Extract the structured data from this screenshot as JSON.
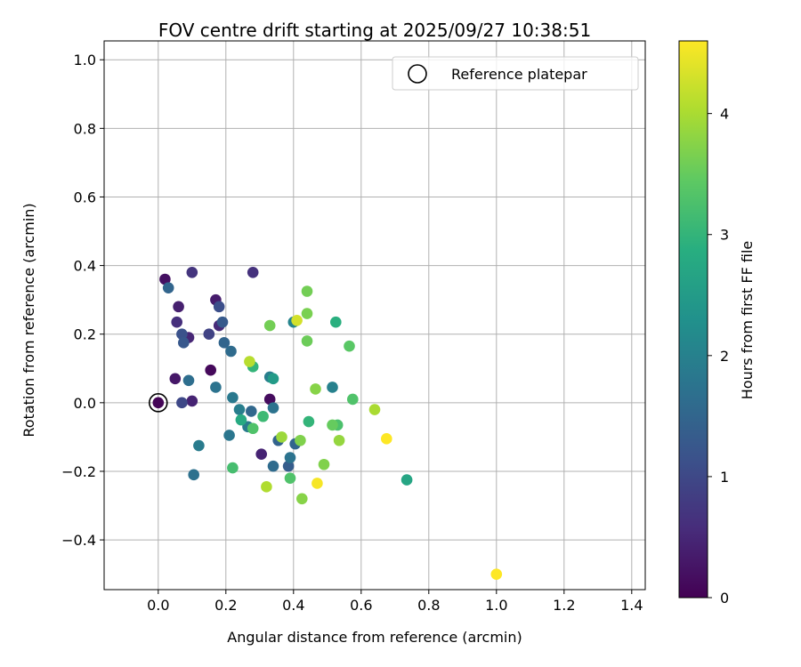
{
  "chart_data": {
    "type": "scatter",
    "title": "FOV centre drift starting at 2025/09/27 10:38:51",
    "xlabel": "Angular distance from reference (arcmin)",
    "ylabel": "Rotation from reference (arcmin)",
    "xlim": [
      -0.16,
      1.44
    ],
    "ylim": [
      -0.545,
      1.055
    ],
    "xticks": [
      0.0,
      0.2,
      0.4,
      0.6,
      0.8,
      1.0,
      1.2,
      1.4
    ],
    "xtick_labels": [
      "0.0",
      "0.2",
      "0.4",
      "0.6",
      "0.8",
      "1.0",
      "1.2",
      "1.4"
    ],
    "yticks": [
      -0.4,
      -0.2,
      0.0,
      0.2,
      0.4,
      0.6,
      0.8,
      1.0
    ],
    "ytick_labels": [
      "−0.4",
      "−0.2",
      "0.0",
      "0.2",
      "0.4",
      "0.6",
      "0.8",
      "1.0"
    ],
    "grid": true,
    "legend": {
      "label": "Reference platepar",
      "placement": "top-right"
    },
    "reference_point": {
      "x": 0.0,
      "y": 0.0
    },
    "colorbar": {
      "label": "Hours from first FF file",
      "min": 0,
      "max": 4.6,
      "ticks": [
        0,
        1,
        2,
        3,
        4
      ],
      "tick_labels": [
        "0",
        "1",
        "2",
        "3",
        "4"
      ],
      "colormap": "viridis"
    },
    "points": [
      {
        "x": 0.0,
        "y": 0.0,
        "h": 0.05
      },
      {
        "x": 0.02,
        "y": 0.36,
        "h": 0.2
      },
      {
        "x": 0.05,
        "y": 0.07,
        "h": 0.3
      },
      {
        "x": 0.06,
        "y": 0.28,
        "h": 0.4
      },
      {
        "x": 0.055,
        "y": 0.235,
        "h": 0.6
      },
      {
        "x": 0.09,
        "y": 0.19,
        "h": 0.5
      },
      {
        "x": 0.1,
        "y": 0.005,
        "h": 0.45
      },
      {
        "x": 0.1,
        "y": 0.38,
        "h": 0.7
      },
      {
        "x": 0.155,
        "y": 0.095,
        "h": 0.1
      },
      {
        "x": 0.17,
        "y": 0.3,
        "h": 0.35
      },
      {
        "x": 0.18,
        "y": 0.225,
        "h": 0.55
      },
      {
        "x": 0.28,
        "y": 0.38,
        "h": 0.65
      },
      {
        "x": 0.33,
        "y": 0.01,
        "h": 0.15
      },
      {
        "x": 0.305,
        "y": -0.15,
        "h": 0.45
      },
      {
        "x": 0.15,
        "y": 0.2,
        "h": 0.9
      },
      {
        "x": 0.07,
        "y": 0.0,
        "h": 1.0
      },
      {
        "x": 0.07,
        "y": 0.2,
        "h": 1.15
      },
      {
        "x": 0.075,
        "y": 0.175,
        "h": 1.25
      },
      {
        "x": 0.03,
        "y": 0.335,
        "h": 1.5
      },
      {
        "x": 0.18,
        "y": 0.28,
        "h": 1.1
      },
      {
        "x": 0.19,
        "y": 0.235,
        "h": 1.3
      },
      {
        "x": 0.195,
        "y": 0.175,
        "h": 1.5
      },
      {
        "x": 0.215,
        "y": 0.15,
        "h": 1.6
      },
      {
        "x": 0.09,
        "y": 0.065,
        "h": 1.65
      },
      {
        "x": 0.17,
        "y": 0.045,
        "h": 1.75
      },
      {
        "x": 0.22,
        "y": 0.015,
        "h": 1.85
      },
      {
        "x": 0.24,
        "y": -0.02,
        "h": 1.95
      },
      {
        "x": 0.275,
        "y": -0.025,
        "h": 1.55
      },
      {
        "x": 0.265,
        "y": -0.07,
        "h": 1.9
      },
      {
        "x": 0.21,
        "y": -0.095,
        "h": 1.8
      },
      {
        "x": 0.12,
        "y": -0.125,
        "h": 1.9
      },
      {
        "x": 0.105,
        "y": -0.21,
        "h": 1.7
      },
      {
        "x": 0.33,
        "y": 0.075,
        "h": 1.95
      },
      {
        "x": 0.34,
        "y": -0.015,
        "h": 1.75
      },
      {
        "x": 0.355,
        "y": -0.11,
        "h": 1.45
      },
      {
        "x": 0.34,
        "y": -0.185,
        "h": 1.6
      },
      {
        "x": 0.385,
        "y": -0.185,
        "h": 1.35
      },
      {
        "x": 0.39,
        "y": -0.16,
        "h": 1.75
      },
      {
        "x": 0.405,
        "y": -0.12,
        "h": 1.5
      },
      {
        "x": 0.4,
        "y": 0.235,
        "h": 2.05
      },
      {
        "x": 0.515,
        "y": 0.045,
        "h": 2.0
      },
      {
        "x": 0.34,
        "y": 0.07,
        "h": 2.5
      },
      {
        "x": 0.28,
        "y": 0.105,
        "h": 3.0
      },
      {
        "x": 0.245,
        "y": -0.05,
        "h": 2.8
      },
      {
        "x": 0.31,
        "y": -0.04,
        "h": 3.1
      },
      {
        "x": 0.28,
        "y": -0.075,
        "h": 3.3
      },
      {
        "x": 0.22,
        "y": -0.19,
        "h": 3.2
      },
      {
        "x": 0.39,
        "y": -0.22,
        "h": 3.3
      },
      {
        "x": 0.445,
        "y": -0.055,
        "h": 3.0
      },
      {
        "x": 0.525,
        "y": 0.235,
        "h": 2.9
      },
      {
        "x": 0.735,
        "y": -0.225,
        "h": 2.7
      },
      {
        "x": 0.53,
        "y": -0.065,
        "h": 3.25
      },
      {
        "x": 0.515,
        "y": -0.065,
        "h": 3.5
      },
      {
        "x": 0.575,
        "y": 0.01,
        "h": 3.3
      },
      {
        "x": 0.565,
        "y": 0.165,
        "h": 3.4
      },
      {
        "x": 0.33,
        "y": 0.225,
        "h": 3.6
      },
      {
        "x": 0.44,
        "y": 0.325,
        "h": 3.6
      },
      {
        "x": 0.44,
        "y": 0.26,
        "h": 3.65
      },
      {
        "x": 0.44,
        "y": 0.18,
        "h": 3.55
      },
      {
        "x": 0.465,
        "y": 0.04,
        "h": 3.75
      },
      {
        "x": 0.42,
        "y": -0.11,
        "h": 3.7
      },
      {
        "x": 0.49,
        "y": -0.18,
        "h": 3.7
      },
      {
        "x": 0.425,
        "y": -0.28,
        "h": 3.75
      },
      {
        "x": 0.365,
        "y": -0.1,
        "h": 3.9
      },
      {
        "x": 0.535,
        "y": -0.11,
        "h": 3.85
      },
      {
        "x": 0.64,
        "y": -0.02,
        "h": 4.0
      },
      {
        "x": 0.32,
        "y": -0.245,
        "h": 4.05
      },
      {
        "x": 0.27,
        "y": 0.12,
        "h": 4.1
      },
      {
        "x": 0.41,
        "y": 0.24,
        "h": 4.3
      },
      {
        "x": 0.47,
        "y": -0.235,
        "h": 4.55
      },
      {
        "x": 0.675,
        "y": -0.105,
        "h": 4.6
      },
      {
        "x": 1.0,
        "y": -0.5,
        "h": 4.6
      }
    ]
  }
}
